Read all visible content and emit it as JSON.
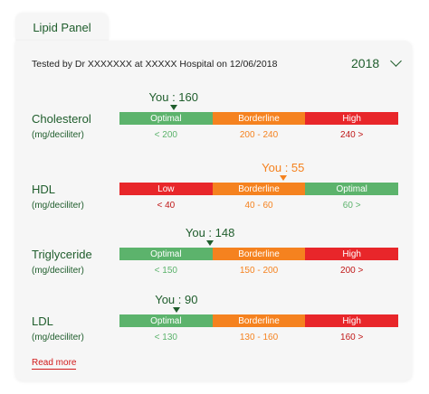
{
  "tab": {
    "label": "Lipid Panel"
  },
  "tested_text": "Tested by Dr XXXXXXX at XXXXX Hospital on 12/06/2018",
  "year": "2018",
  "colors": {
    "good": "#5cb36c",
    "border": "#f5821f",
    "high": "#e8262a",
    "dark_green": "#1f5d2c"
  },
  "tests": [
    {
      "name": "Cholesterol",
      "unit": "(mg/deciliter)",
      "you_label": "You : 160",
      "you_color": "#1f5d2c",
      "you_fraction": 0.194,
      "segments": [
        {
          "label": "Optimal",
          "color": "#5cb36c"
        },
        {
          "label": "Borderline",
          "color": "#f5821f"
        },
        {
          "label": "High",
          "color": "#e8262a"
        }
      ],
      "ranges": [
        {
          "label": "< 200",
          "color": "#5cb36c"
        },
        {
          "label": "200 - 240",
          "color": "#f5821f"
        },
        {
          "label": "240 >",
          "color": "#c01818"
        }
      ]
    },
    {
      "name": "HDL",
      "unit": "(mg/deciliter)",
      "you_label": "You : 55",
      "you_color": "#f5821f",
      "you_fraction": 0.587,
      "segments": [
        {
          "label": "Low",
          "color": "#e8262a"
        },
        {
          "label": "Borderline",
          "color": "#f5821f"
        },
        {
          "label": "Optimal",
          "color": "#5cb36c"
        }
      ],
      "ranges": [
        {
          "label": "< 40",
          "color": "#c01818"
        },
        {
          "label": "40 - 60",
          "color": "#f5821f"
        },
        {
          "label": "60 >",
          "color": "#5cb36c"
        }
      ]
    },
    {
      "name": "Triglyceride",
      "unit": "(mg/deciliter)",
      "you_label": "You : 148",
      "you_color": "#1f5d2c",
      "you_fraction": 0.325,
      "segments": [
        {
          "label": "Optimal",
          "color": "#5cb36c"
        },
        {
          "label": "Borderline",
          "color": "#f5821f"
        },
        {
          "label": "High",
          "color": "#e8262a"
        }
      ],
      "ranges": [
        {
          "label": "< 150",
          "color": "#5cb36c"
        },
        {
          "label": "150 - 200",
          "color": "#f5821f"
        },
        {
          "label": "200 >",
          "color": "#c01818"
        }
      ]
    },
    {
      "name": "LDL",
      "unit": "(mg/deciliter)",
      "you_label": "You : 90",
      "you_color": "#1f5d2c",
      "you_fraction": 0.204,
      "segments": [
        {
          "label": "Optimal",
          "color": "#5cb36c"
        },
        {
          "label": "Borderline",
          "color": "#f5821f"
        },
        {
          "label": "High",
          "color": "#e8262a"
        }
      ],
      "ranges": [
        {
          "label": "< 130",
          "color": "#5cb36c"
        },
        {
          "label": "130 - 160",
          "color": "#f5821f"
        },
        {
          "label": "160 >",
          "color": "#c01818"
        }
      ]
    }
  ],
  "read_more": "Read more"
}
